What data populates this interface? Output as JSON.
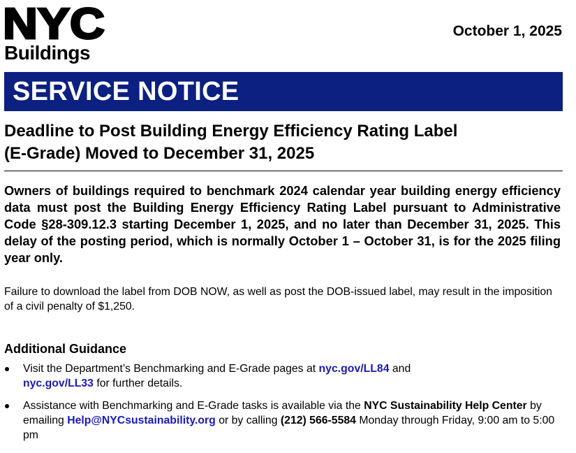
{
  "header": {
    "logo_text": "NYC",
    "logo_subtitle": "Buildings",
    "date": "October 1, 2025"
  },
  "banner": {
    "title": "SERVICE NOTICE"
  },
  "headline": {
    "line1": "Deadline to Post Building Energy Efficiency Rating Label",
    "line2": "(E-Grade) Moved to December 31, 2025"
  },
  "lead": "Owners of buildings required to benchmark 2024 calendar year building energy efficiency data must post the Building Energy Efficiency Rating Label pursuant to Administrative Code §28-309.12.3 starting December 1, 2025, and no later than December 31, 2025. This delay of the posting period, which is normally October 1 – October 31, is for the 2025 filing year only.",
  "body": "Failure to download the label from DOB NOW, as well as post the DOB-issued label, may result in the imposition of a civil penalty of $1,250.",
  "guidance": {
    "title": "Additional Guidance",
    "bullet1": {
      "text_before": "Visit the Department’s Benchmarking and E-Grade pages at ",
      "link1": "nyc.gov/LL84",
      "text_mid": " and ",
      "link2": "nyc.gov/LL33",
      "text_after": " for further details."
    },
    "bullet2": {
      "text_before": "Assistance with Benchmarking and E-Grade tasks is available via the ",
      "bold1": "NYC Sustainability Help Center",
      "text_mid1": " by emailing ",
      "email": "Help@NYCsustainability.org",
      "text_mid2": " or by calling ",
      "phone": "(212) 566-5584",
      "text_after": " Monday through Friday, 9:00 am to 5:00 pm"
    }
  },
  "colors": {
    "banner": "#0b2080",
    "link": "#1a1ab8"
  }
}
